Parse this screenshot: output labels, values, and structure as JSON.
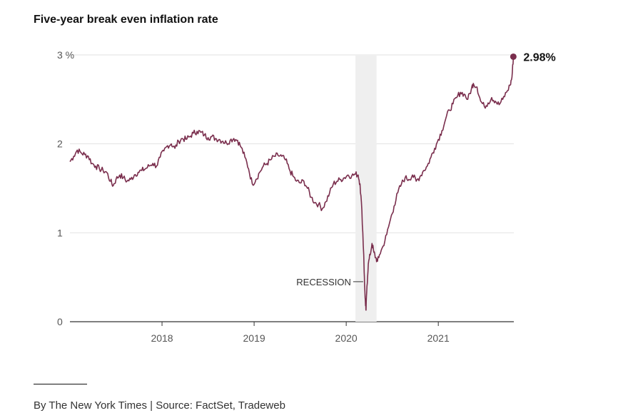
{
  "chart_data": {
    "type": "line",
    "title": "Five-year break even inflation rate",
    "source": "By The New York Times | Source: FactSet, Tradeweb",
    "ylabel": "%",
    "y_ticks": [
      {
        "value": 0,
        "label": "0"
      },
      {
        "value": 1,
        "label": "1"
      },
      {
        "value": 2,
        "label": "2"
      },
      {
        "value": 3,
        "label": "3 %"
      }
    ],
    "x_ticks": [
      {
        "value": 2018.0,
        "label": "2018"
      },
      {
        "value": 2019.0,
        "label": "2019"
      },
      {
        "value": 2020.0,
        "label": "2020"
      },
      {
        "value": 2021.0,
        "label": "2021"
      }
    ],
    "xlim": [
      2017.0,
      2021.82
    ],
    "ylim": [
      0,
      3
    ],
    "grid": true,
    "recession": {
      "label": "RECESSION",
      "start": 2020.1,
      "end": 2020.33
    },
    "end_label": "2.98%",
    "color": "#7a2e4d",
    "series": [
      {
        "name": "Five-year break even inflation rate",
        "points": [
          [
            2017.0,
            1.8
          ],
          [
            2017.04,
            1.86
          ],
          [
            2017.08,
            1.93
          ],
          [
            2017.12,
            1.9
          ],
          [
            2017.16,
            1.88
          ],
          [
            2017.2,
            1.86
          ],
          [
            2017.24,
            1.78
          ],
          [
            2017.28,
            1.75
          ],
          [
            2017.32,
            1.72
          ],
          [
            2017.36,
            1.7
          ],
          [
            2017.4,
            1.68
          ],
          [
            2017.44,
            1.58
          ],
          [
            2017.47,
            1.53
          ],
          [
            2017.5,
            1.6
          ],
          [
            2017.54,
            1.65
          ],
          [
            2017.58,
            1.62
          ],
          [
            2017.62,
            1.58
          ],
          [
            2017.66,
            1.6
          ],
          [
            2017.7,
            1.65
          ],
          [
            2017.74,
            1.68
          ],
          [
            2017.78,
            1.7
          ],
          [
            2017.82,
            1.72
          ],
          [
            2017.86,
            1.75
          ],
          [
            2017.9,
            1.78
          ],
          [
            2017.94,
            1.75
          ],
          [
            2017.98,
            1.85
          ],
          [
            2018.02,
            1.92
          ],
          [
            2018.06,
            1.98
          ],
          [
            2018.1,
            2.0
          ],
          [
            2018.14,
            1.95
          ],
          [
            2018.18,
            2.03
          ],
          [
            2018.22,
            2.06
          ],
          [
            2018.26,
            2.05
          ],
          [
            2018.3,
            2.08
          ],
          [
            2018.34,
            2.12
          ],
          [
            2018.38,
            2.14
          ],
          [
            2018.42,
            2.13
          ],
          [
            2018.46,
            2.1
          ],
          [
            2018.5,
            2.07
          ],
          [
            2018.54,
            2.08
          ],
          [
            2018.58,
            2.06
          ],
          [
            2018.62,
            2.05
          ],
          [
            2018.66,
            2.03
          ],
          [
            2018.7,
            2.01
          ],
          [
            2018.74,
            2.04
          ],
          [
            2018.78,
            2.06
          ],
          [
            2018.82,
            2.04
          ],
          [
            2018.86,
            1.96
          ],
          [
            2018.9,
            1.85
          ],
          [
            2018.94,
            1.72
          ],
          [
            2018.98,
            1.55
          ],
          [
            2019.02,
            1.6
          ],
          [
            2019.06,
            1.68
          ],
          [
            2019.1,
            1.75
          ],
          [
            2019.14,
            1.78
          ],
          [
            2019.18,
            1.82
          ],
          [
            2019.22,
            1.86
          ],
          [
            2019.26,
            1.87
          ],
          [
            2019.3,
            1.86
          ],
          [
            2019.34,
            1.82
          ],
          [
            2019.38,
            1.72
          ],
          [
            2019.42,
            1.64
          ],
          [
            2019.46,
            1.58
          ],
          [
            2019.5,
            1.56
          ],
          [
            2019.54,
            1.58
          ],
          [
            2019.58,
            1.5
          ],
          [
            2019.62,
            1.4
          ],
          [
            2019.66,
            1.34
          ],
          [
            2019.7,
            1.32
          ],
          [
            2019.74,
            1.27
          ],
          [
            2019.78,
            1.35
          ],
          [
            2019.82,
            1.45
          ],
          [
            2019.86,
            1.55
          ],
          [
            2019.9,
            1.58
          ],
          [
            2019.94,
            1.6
          ],
          [
            2019.98,
            1.62
          ],
          [
            2020.02,
            1.65
          ],
          [
            2020.06,
            1.64
          ],
          [
            2020.1,
            1.66
          ],
          [
            2020.13,
            1.65
          ],
          [
            2020.15,
            1.55
          ],
          [
            2020.17,
            1.25
          ],
          [
            2020.19,
            0.75
          ],
          [
            2020.2,
            0.4
          ],
          [
            2020.21,
            0.18
          ],
          [
            2020.215,
            0.13
          ],
          [
            2020.225,
            0.4
          ],
          [
            2020.24,
            0.65
          ],
          [
            2020.26,
            0.75
          ],
          [
            2020.28,
            0.88
          ],
          [
            2020.3,
            0.78
          ],
          [
            2020.32,
            0.72
          ],
          [
            2020.34,
            0.68
          ],
          [
            2020.36,
            0.75
          ],
          [
            2020.4,
            0.85
          ],
          [
            2020.44,
            0.98
          ],
          [
            2020.48,
            1.15
          ],
          [
            2020.52,
            1.3
          ],
          [
            2020.56,
            1.45
          ],
          [
            2020.6,
            1.55
          ],
          [
            2020.64,
            1.62
          ],
          [
            2020.68,
            1.6
          ],
          [
            2020.72,
            1.65
          ],
          [
            2020.76,
            1.58
          ],
          [
            2020.8,
            1.63
          ],
          [
            2020.84,
            1.7
          ],
          [
            2020.88,
            1.75
          ],
          [
            2020.92,
            1.85
          ],
          [
            2020.96,
            1.95
          ],
          [
            2021.0,
            2.05
          ],
          [
            2021.04,
            2.15
          ],
          [
            2021.08,
            2.28
          ],
          [
            2021.12,
            2.38
          ],
          [
            2021.16,
            2.45
          ],
          [
            2021.2,
            2.52
          ],
          [
            2021.24,
            2.58
          ],
          [
            2021.28,
            2.56
          ],
          [
            2021.32,
            2.5
          ],
          [
            2021.36,
            2.62
          ],
          [
            2021.38,
            2.68
          ],
          [
            2021.42,
            2.64
          ],
          [
            2021.46,
            2.48
          ],
          [
            2021.5,
            2.42
          ],
          [
            2021.54,
            2.46
          ],
          [
            2021.58,
            2.52
          ],
          [
            2021.62,
            2.48
          ],
          [
            2021.66,
            2.44
          ],
          [
            2021.7,
            2.5
          ],
          [
            2021.74,
            2.58
          ],
          [
            2021.78,
            2.66
          ],
          [
            2021.8,
            2.75
          ],
          [
            2021.815,
            2.98
          ]
        ]
      }
    ]
  }
}
